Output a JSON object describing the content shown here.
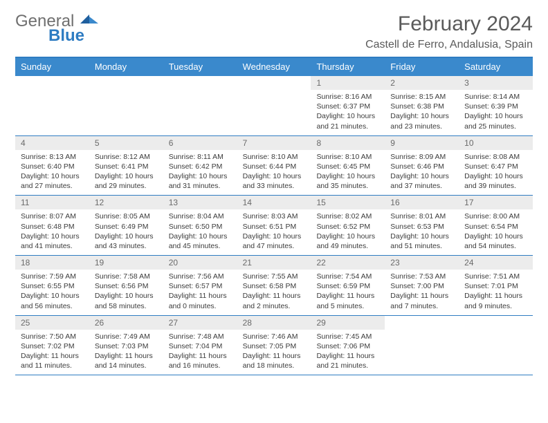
{
  "brand": {
    "general": "General",
    "blue": "Blue"
  },
  "header": {
    "title": "February 2024",
    "location": "Castell de Ferro, Andalusia, Spain"
  },
  "colors": {
    "accent": "#3a89cc",
    "rule": "#2e7cc2",
    "dayband": "#ececec",
    "text": "#3b3b3b",
    "muted": "#6a6a6a"
  },
  "dayNames": [
    "Sunday",
    "Monday",
    "Tuesday",
    "Wednesday",
    "Thursday",
    "Friday",
    "Saturday"
  ],
  "weeks": [
    [
      null,
      null,
      null,
      null,
      {
        "n": "1",
        "sr": "8:16 AM",
        "ss": "6:37 PM",
        "dl": "10 hours and 21 minutes."
      },
      {
        "n": "2",
        "sr": "8:15 AM",
        "ss": "6:38 PM",
        "dl": "10 hours and 23 minutes."
      },
      {
        "n": "3",
        "sr": "8:14 AM",
        "ss": "6:39 PM",
        "dl": "10 hours and 25 minutes."
      }
    ],
    [
      {
        "n": "4",
        "sr": "8:13 AM",
        "ss": "6:40 PM",
        "dl": "10 hours and 27 minutes."
      },
      {
        "n": "5",
        "sr": "8:12 AM",
        "ss": "6:41 PM",
        "dl": "10 hours and 29 minutes."
      },
      {
        "n": "6",
        "sr": "8:11 AM",
        "ss": "6:42 PM",
        "dl": "10 hours and 31 minutes."
      },
      {
        "n": "7",
        "sr": "8:10 AM",
        "ss": "6:44 PM",
        "dl": "10 hours and 33 minutes."
      },
      {
        "n": "8",
        "sr": "8:10 AM",
        "ss": "6:45 PM",
        "dl": "10 hours and 35 minutes."
      },
      {
        "n": "9",
        "sr": "8:09 AM",
        "ss": "6:46 PM",
        "dl": "10 hours and 37 minutes."
      },
      {
        "n": "10",
        "sr": "8:08 AM",
        "ss": "6:47 PM",
        "dl": "10 hours and 39 minutes."
      }
    ],
    [
      {
        "n": "11",
        "sr": "8:07 AM",
        "ss": "6:48 PM",
        "dl": "10 hours and 41 minutes."
      },
      {
        "n": "12",
        "sr": "8:05 AM",
        "ss": "6:49 PM",
        "dl": "10 hours and 43 minutes."
      },
      {
        "n": "13",
        "sr": "8:04 AM",
        "ss": "6:50 PM",
        "dl": "10 hours and 45 minutes."
      },
      {
        "n": "14",
        "sr": "8:03 AM",
        "ss": "6:51 PM",
        "dl": "10 hours and 47 minutes."
      },
      {
        "n": "15",
        "sr": "8:02 AM",
        "ss": "6:52 PM",
        "dl": "10 hours and 49 minutes."
      },
      {
        "n": "16",
        "sr": "8:01 AM",
        "ss": "6:53 PM",
        "dl": "10 hours and 51 minutes."
      },
      {
        "n": "17",
        "sr": "8:00 AM",
        "ss": "6:54 PM",
        "dl": "10 hours and 54 minutes."
      }
    ],
    [
      {
        "n": "18",
        "sr": "7:59 AM",
        "ss": "6:55 PM",
        "dl": "10 hours and 56 minutes."
      },
      {
        "n": "19",
        "sr": "7:58 AM",
        "ss": "6:56 PM",
        "dl": "10 hours and 58 minutes."
      },
      {
        "n": "20",
        "sr": "7:56 AM",
        "ss": "6:57 PM",
        "dl": "11 hours and 0 minutes."
      },
      {
        "n": "21",
        "sr": "7:55 AM",
        "ss": "6:58 PM",
        "dl": "11 hours and 2 minutes."
      },
      {
        "n": "22",
        "sr": "7:54 AM",
        "ss": "6:59 PM",
        "dl": "11 hours and 5 minutes."
      },
      {
        "n": "23",
        "sr": "7:53 AM",
        "ss": "7:00 PM",
        "dl": "11 hours and 7 minutes."
      },
      {
        "n": "24",
        "sr": "7:51 AM",
        "ss": "7:01 PM",
        "dl": "11 hours and 9 minutes."
      }
    ],
    [
      {
        "n": "25",
        "sr": "7:50 AM",
        "ss": "7:02 PM",
        "dl": "11 hours and 11 minutes."
      },
      {
        "n": "26",
        "sr": "7:49 AM",
        "ss": "7:03 PM",
        "dl": "11 hours and 14 minutes."
      },
      {
        "n": "27",
        "sr": "7:48 AM",
        "ss": "7:04 PM",
        "dl": "11 hours and 16 minutes."
      },
      {
        "n": "28",
        "sr": "7:46 AM",
        "ss": "7:05 PM",
        "dl": "11 hours and 18 minutes."
      },
      {
        "n": "29",
        "sr": "7:45 AM",
        "ss": "7:06 PM",
        "dl": "11 hours and 21 minutes."
      },
      null,
      null
    ]
  ],
  "labels": {
    "sunrise": "Sunrise:",
    "sunset": "Sunset:",
    "daylight": "Daylight:"
  }
}
